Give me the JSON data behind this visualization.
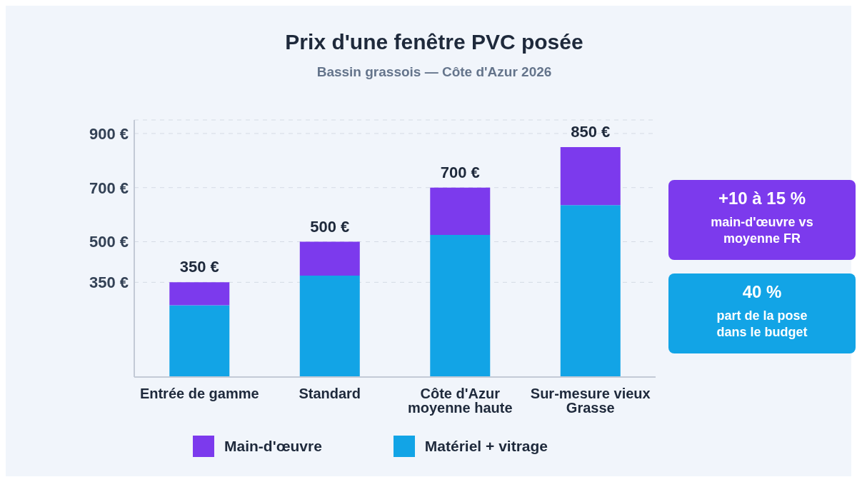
{
  "chart_data": {
    "type": "bar",
    "title": "Prix d'une fenêtre PVC posée",
    "subtitle": "Bassin grassois — Côte d'Azur 2026",
    "categories": [
      "Entrée de gamme",
      "Standard",
      "Côte d'Azur moyenne haute",
      "Sur-mesure vieux Grasse"
    ],
    "stacked": true,
    "series": [
      {
        "name": "Matériel + vitrage",
        "color": "#12a4e6",
        "values": [
          265,
          375,
          525,
          635
        ]
      },
      {
        "name": "Main-d'œuvre",
        "color": "#7c3aed",
        "values": [
          85,
          125,
          175,
          215
        ]
      }
    ],
    "totals": [
      "350 €",
      "500 €",
      "700 €",
      "850 €"
    ],
    "ylim": [
      0,
      950
    ],
    "yticks": [
      {
        "value": 350,
        "label": "350 €"
      },
      {
        "value": 500,
        "label": "500 €"
      },
      {
        "value": 700,
        "label": "700 €"
      },
      {
        "value": 900,
        "label": "900 €"
      }
    ],
    "grid": "y",
    "legend": "bottom",
    "annotations": [
      "+10 à 15 %",
      "main-d'œuvre vs moyenne FR",
      "40 %",
      "part de la pose dans le budget"
    ]
  }
}
